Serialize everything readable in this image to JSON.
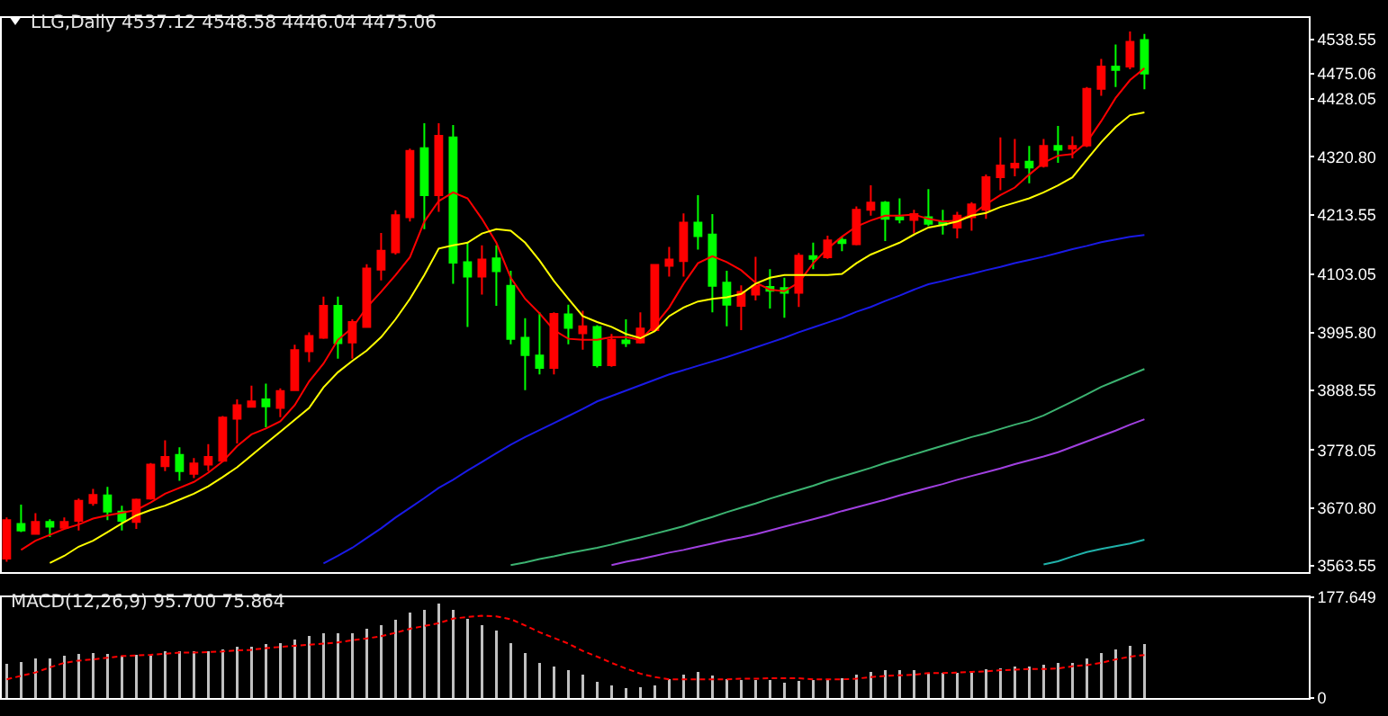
{
  "chart_data": [
    {
      "type": "candlestick",
      "title": "LLG,Daily 4537.12 4548.58 4446.04 4475.06",
      "tick_labels": "y",
      "categories": [
        null,
        null,
        null,
        null,
        null,
        null,
        null,
        null,
        null,
        null,
        null,
        null,
        null,
        null,
        null,
        null,
        null,
        null,
        null,
        null,
        null,
        null,
        null,
        null,
        null,
        null,
        null,
        null,
        null,
        null,
        null,
        null,
        null,
        null,
        null,
        null,
        null,
        null,
        null,
        null,
        null,
        null,
        null,
        null,
        null,
        null,
        null,
        null,
        null,
        null,
        null,
        null,
        null,
        null,
        null,
        null,
        null,
        null,
        null,
        null,
        null,
        null,
        null,
        null,
        null,
        null,
        null,
        null,
        null,
        null,
        null,
        null,
        null,
        null,
        null,
        null,
        null,
        null,
        null,
        null
      ],
      "ylim": [
        3552,
        4578
      ],
      "yticks": [
        3563.55,
        {
          "value": 3670.8,
          "label": "3670.80"
        },
        3778.05,
        3888.55,
        {
          "value": 3995.8,
          "label": "3995.80"
        },
        4103.05,
        4213.55,
        {
          "value": 4320.8,
          "label": "4320.80"
        },
        4428.05,
        4475.06,
        4538.55
      ],
      "ohlc": [
        [
          3577,
          3653,
          3571,
          3648
        ],
        [
          3641,
          3677,
          3626,
          3629
        ],
        [
          3623,
          3661,
          3621,
          3645
        ],
        [
          3645,
          3650,
          3617,
          3636
        ],
        [
          3634,
          3653,
          3632,
          3645
        ],
        [
          3647,
          3688,
          3629,
          3684
        ],
        [
          3680,
          3706,
          3675,
          3695
        ],
        [
          3694,
          3710,
          3648,
          3664
        ],
        [
          3664,
          3675,
          3629,
          3647
        ],
        [
          3645,
          3688,
          3632,
          3686
        ],
        [
          3688,
          3754,
          3686,
          3751
        ],
        [
          3748,
          3796,
          3739,
          3765
        ],
        [
          3769,
          3783,
          3721,
          3739
        ],
        [
          3734,
          3763,
          3726,
          3753
        ],
        [
          3751,
          3789,
          3739,
          3765
        ],
        [
          3758,
          3841,
          3756,
          3838
        ],
        [
          3836,
          3872,
          3790,
          3861
        ],
        [
          3858,
          3897,
          3857,
          3868
        ],
        [
          3872,
          3901,
          3820,
          3859
        ],
        [
          3856,
          3892,
          3839,
          3887
        ],
        [
          3889,
          3973,
          3887,
          3963
        ],
        [
          3961,
          3996,
          3941,
          3989
        ],
        [
          3986,
          4062,
          3984,
          4045
        ],
        [
          4045,
          4062,
          3947,
          3976
        ],
        [
          3977,
          4020,
          3947,
          4015
        ],
        [
          4006,
          4122,
          4004,
          4114
        ],
        [
          4112,
          4180,
          4092,
          4147
        ],
        [
          4144,
          4222,
          4140,
          4213
        ],
        [
          4209,
          4336,
          4201,
          4332
        ],
        [
          4337,
          4383,
          4187,
          4250
        ],
        [
          4250,
          4383,
          4219,
          4360
        ],
        [
          4357,
          4380,
          4086,
          4125
        ],
        [
          4126,
          4162,
          4006,
          4099
        ],
        [
          4099,
          4157,
          4066,
          4131
        ],
        [
          4133,
          4157,
          4045,
          4109
        ],
        [
          4082,
          4110,
          3974,
          3984
        ],
        [
          3986,
          4022,
          3889,
          3954
        ],
        [
          3953,
          4033,
          3918,
          3930
        ],
        [
          3930,
          4033,
          3918,
          4030
        ],
        [
          4029,
          4047,
          3974,
          4004
        ],
        [
          3994,
          4036,
          3964,
          4007
        ],
        [
          4006,
          4009,
          3931,
          3935
        ],
        [
          3935,
          3993,
          3932,
          3982
        ],
        [
          3981,
          4020,
          3969,
          3976
        ],
        [
          3977,
          4033,
          3975,
          4003
        ],
        [
          4000,
          4121,
          3998,
          4121
        ],
        [
          4119,
          4154,
          4099,
          4131
        ],
        [
          4128,
          4216,
          4099,
          4199
        ],
        [
          4199,
          4250,
          4149,
          4174
        ],
        [
          4177,
          4215,
          4033,
          4082
        ],
        [
          4088,
          4110,
          4007,
          4047
        ],
        [
          4045,
          4083,
          4000,
          4071
        ],
        [
          4066,
          4136,
          4055,
          4082
        ],
        [
          4080,
          4113,
          4040,
          4073
        ],
        [
          4078,
          4097,
          4023,
          4069
        ],
        [
          4069,
          4143,
          4043,
          4138
        ],
        [
          4137,
          4162,
          4113,
          4132
        ],
        [
          4135,
          4175,
          4132,
          4166
        ],
        [
          4167,
          4173,
          4146,
          4161
        ],
        [
          4159,
          4229,
          4157,
          4223
        ],
        [
          4223,
          4268,
          4212,
          4236
        ],
        [
          4236,
          4239,
          4165,
          4206
        ],
        [
          4209,
          4244,
          4198,
          4205
        ],
        [
          4204,
          4223,
          4179,
          4215
        ],
        [
          4209,
          4261,
          4193,
          4197
        ],
        [
          4201,
          4223,
          4177,
          4195
        ],
        [
          4190,
          4219,
          4170,
          4212
        ],
        [
          4209,
          4237,
          4184,
          4233
        ],
        [
          4223,
          4288,
          4206,
          4283
        ],
        [
          4283,
          4357,
          4259,
          4305
        ],
        [
          4301,
          4354,
          4285,
          4308
        ],
        [
          4312,
          4341,
          4272,
          4301
        ],
        [
          4304,
          4354,
          4301,
          4341
        ],
        [
          4341,
          4378,
          4310,
          4334
        ],
        [
          4336,
          4359,
          4318,
          4341
        ],
        [
          4342,
          4450,
          4339,
          4447
        ],
        [
          4447,
          4502,
          4434,
          4488
        ],
        [
          4488,
          4529,
          4450,
          4482
        ],
        [
          4488,
          4553,
          4483,
          4534
        ],
        [
          4537.12,
          4548.58,
          4446.04,
          4475.06
        ]
      ],
      "colors": [
        "#ff0000",
        "#00ff00",
        "#ff0000",
        "#00ff00",
        "#ff0000",
        "#ff0000",
        "#ff0000",
        "#00ff00",
        "#00ff00",
        "#ff0000",
        "#ff0000",
        "#ff0000",
        "#00ff00",
        "#ff0000",
        "#ff0000",
        "#ff0000",
        "#ff0000",
        "#ff0000",
        "#00ff00",
        "#ff0000",
        "#ff0000",
        "#ff0000",
        "#ff0000",
        "#00ff00",
        "#ff0000",
        "#ff0000",
        "#ff0000",
        "#ff0000",
        "#ff0000",
        "#00ff00",
        "#ff0000",
        "#00ff00",
        "#00ff00",
        "#ff0000",
        "#00ff00",
        "#00ff00",
        "#00ff00",
        "#00ff00",
        "#ff0000",
        "#00ff00",
        "#ff0000",
        "#00ff00",
        "#ff0000",
        "#00ff00",
        "#ff0000",
        "#ff0000",
        "#ff0000",
        "#ff0000",
        "#00ff00",
        "#00ff00",
        "#00ff00",
        "#ff0000",
        "#ff0000",
        "#00ff00",
        "#00ff00",
        "#ff0000",
        "#00ff00",
        "#ff0000",
        "#00ff00",
        "#ff0000",
        "#ff0000",
        "#00ff00",
        "#00ff00",
        "#ff0000",
        "#00ff00",
        "#00ff00",
        "#ff0000",
        "#ff0000",
        "#ff0000",
        "#ff0000",
        "#ff0000",
        "#00ff00",
        "#ff0000",
        "#00ff00",
        "#ff0000",
        "#ff0000",
        "#ff0000",
        "#00ff00",
        "#ff0000",
        "#00ff00"
      ],
      "series": [
        {
          "type": "line",
          "color": "#ff0000",
          "values": [
            null,
            3593,
            3610,
            3621,
            3632,
            3640,
            3651,
            3657,
            3662,
            3667,
            3681,
            3697,
            3708,
            3719,
            3736,
            3757,
            3785,
            3807,
            3818,
            3831,
            3861,
            3905,
            3938,
            3982,
            4004,
            4042,
            4071,
            4102,
            4135,
            4201,
            4239,
            4255,
            4244,
            4206,
            4162,
            4097,
            4058,
            4031,
            4000,
            3984,
            3982,
            3982,
            3987,
            3987,
            3982,
            4009,
            4042,
            4086,
            4124,
            4137,
            4126,
            4111,
            4088,
            4075,
            4072,
            4088,
            4124,
            4151,
            4173,
            4192,
            4203,
            4212,
            4212,
            4214,
            4206,
            4201,
            4203,
            4214,
            4233,
            4250,
            4264,
            4288,
            4310,
            4323,
            4326,
            4348,
            4387,
            4430,
            4463,
            4485
          ]
        },
        {
          "type": "line",
          "color": "#ffff00",
          "values": [
            null,
            null,
            null,
            3569,
            3582,
            3599,
            3610,
            3626,
            3642,
            3657,
            3667,
            3675,
            3686,
            3697,
            3711,
            3728,
            3746,
            3768,
            3790,
            3812,
            3834,
            3856,
            3894,
            3922,
            3943,
            3962,
            3987,
            4020,
            4058,
            4102,
            4151,
            4157,
            4162,
            4179,
            4187,
            4184,
            4162,
            4129,
            4091,
            4058,
            4026,
            4015,
            4006,
            3993,
            3985,
            3998,
            4026,
            4042,
            4053,
            4058,
            4061,
            4067,
            4086,
            4097,
            4102,
            4102,
            4102,
            4102,
            4104,
            4124,
            4140,
            4151,
            4162,
            4177,
            4190,
            4195,
            4201,
            4212,
            4217,
            4228,
            4236,
            4244,
            4255,
            4268,
            4283,
            4316,
            4348,
            4376,
            4398,
            4403
          ]
        },
        {
          "type": "line",
          "color": "#1a1ae6",
          "values": [
            null,
            null,
            null,
            null,
            null,
            null,
            null,
            null,
            null,
            null,
            null,
            null,
            null,
            null,
            null,
            null,
            null,
            null,
            null,
            null,
            null,
            null,
            3568,
            3582,
            3597,
            3615,
            3633,
            3653,
            3671,
            3689,
            3708,
            3723,
            3740,
            3756,
            3772,
            3788,
            3802,
            3815,
            3828,
            3841,
            3854,
            3868,
            3878,
            3888,
            3898,
            3908,
            3918,
            3926,
            3934,
            3942,
            3950,
            3959,
            3968,
            3977,
            3986,
            3996,
            4005,
            4014,
            4023,
            4034,
            4043,
            4054,
            4064,
            4075,
            4085,
            4091,
            4098,
            4104,
            4111,
            4117,
            4124,
            4130,
            4136,
            4143,
            4150,
            4156,
            4163,
            4168,
            4173,
            4176
          ]
        },
        {
          "type": "line",
          "color": "#3cb371",
          "values": [
            null,
            null,
            null,
            null,
            null,
            null,
            null,
            null,
            null,
            null,
            null,
            null,
            null,
            null,
            null,
            null,
            null,
            null,
            null,
            null,
            null,
            null,
            null,
            null,
            null,
            null,
            null,
            null,
            null,
            null,
            null,
            null,
            null,
            null,
            null,
            3565,
            3570,
            3576,
            3581,
            3587,
            3592,
            3597,
            3603,
            3610,
            3616,
            3623,
            3630,
            3637,
            3646,
            3654,
            3663,
            3671,
            3679,
            3688,
            3696,
            3704,
            3712,
            3721,
            3729,
            3737,
            3745,
            3754,
            3762,
            3770,
            3778,
            3786,
            3794,
            3802,
            3809,
            3817,
            3825,
            3832,
            3842,
            3855,
            3868,
            3881,
            3895,
            3906,
            3917,
            3928
          ]
        },
        {
          "type": "line",
          "color": "#a040e0",
          "values": [
            null,
            null,
            null,
            null,
            null,
            null,
            null,
            null,
            null,
            null,
            null,
            null,
            null,
            null,
            null,
            null,
            null,
            null,
            null,
            null,
            null,
            null,
            null,
            null,
            null,
            null,
            null,
            null,
            null,
            null,
            null,
            null,
            null,
            null,
            null,
            null,
            null,
            null,
            null,
            null,
            null,
            null,
            3565,
            3571,
            3576,
            3582,
            3588,
            3593,
            3599,
            3605,
            3611,
            3616,
            3622,
            3629,
            3636,
            3643,
            3650,
            3657,
            3665,
            3672,
            3679,
            3686,
            3694,
            3701,
            3708,
            3715,
            3723,
            3730,
            3737,
            3744,
            3752,
            3759,
            3766,
            3774,
            3784,
            3794,
            3804,
            3814,
            3825,
            3835
          ]
        },
        {
          "type": "line",
          "color": "#20b2aa",
          "values": [
            null,
            null,
            null,
            null,
            null,
            null,
            null,
            null,
            null,
            null,
            null,
            null,
            null,
            null,
            null,
            null,
            null,
            null,
            null,
            null,
            null,
            null,
            null,
            null,
            null,
            null,
            null,
            null,
            null,
            null,
            null,
            null,
            null,
            null,
            null,
            null,
            null,
            null,
            null,
            null,
            null,
            null,
            null,
            null,
            null,
            null,
            null,
            null,
            null,
            null,
            null,
            null,
            null,
            null,
            null,
            null,
            null,
            null,
            null,
            null,
            null,
            null,
            null,
            null,
            null,
            null,
            null,
            null,
            null,
            null,
            null,
            null,
            3566,
            3572,
            3581,
            3589,
            3595,
            3600,
            3605,
            3612
          ]
        }
      ]
    },
    {
      "type": "bar",
      "title": "MACD(12,26,9) 95.700 75.864",
      "tick_labels": "y",
      "categories": [
        null,
        null,
        null,
        null,
        null,
        null,
        null,
        null,
        null,
        null,
        null,
        null,
        null,
        null,
        null,
        null,
        null,
        null,
        null,
        null,
        null,
        null,
        null,
        null,
        null,
        null,
        null,
        null,
        null,
        null,
        null,
        null,
        null,
        null,
        null,
        null,
        null,
        null,
        null,
        null,
        null,
        null,
        null,
        null,
        null,
        null,
        null,
        null,
        null,
        null,
        null,
        null,
        null,
        null,
        null,
        null,
        null,
        null,
        null,
        null,
        null,
        null,
        null,
        null,
        null,
        null,
        null,
        null,
        null,
        null,
        null,
        null,
        null,
        null,
        null,
        null,
        null,
        null,
        null,
        null
      ],
      "ylim": [
        0,
        177.649
      ],
      "yticks": [
        0,
        177.649
      ],
      "series": [
        {
          "type": "bar",
          "color": "#c0c0c0",
          "values": [
            60,
            64,
            70,
            70,
            74,
            78,
            80,
            77,
            74,
            76,
            75,
            83,
            82,
            82,
            83,
            85,
            90,
            90,
            95,
            96,
            103,
            109,
            115,
            114,
            114,
            122,
            129,
            138,
            151,
            156,
            167,
            155,
            139,
            129,
            119,
            97,
            80,
            62,
            56,
            49,
            41,
            28,
            23,
            18,
            19,
            23,
            33,
            42,
            46,
            40,
            34,
            32,
            31,
            32,
            27,
            30,
            32,
            32,
            35,
            41,
            46,
            49,
            49,
            49,
            45,
            45,
            45,
            45,
            50,
            53,
            56,
            56,
            59,
            62,
            62,
            70,
            80,
            85,
            92,
            95.7
          ]
        },
        {
          "type": "line",
          "color": "#ff0000",
          "line_style": "dashed",
          "values": [
            33,
            39,
            45,
            54,
            62,
            66,
            68,
            71,
            74,
            75,
            76,
            78,
            80,
            80,
            81,
            82,
            84,
            85,
            88,
            90,
            92,
            94,
            96,
            98,
            102,
            105,
            109,
            115,
            122,
            127,
            132,
            140,
            143,
            145,
            144,
            139,
            128,
            116,
            106,
            96,
            83,
            73,
            62,
            52,
            43,
            37,
            33,
            33,
            33,
            33,
            33,
            34,
            34,
            35,
            35,
            35,
            33,
            33,
            33,
            34,
            37,
            39,
            40,
            41,
            44,
            44,
            45,
            46,
            47,
            49,
            50,
            51,
            51,
            52,
            56,
            58,
            62,
            68,
            73,
            75.864
          ]
        }
      ]
    }
  ]
}
